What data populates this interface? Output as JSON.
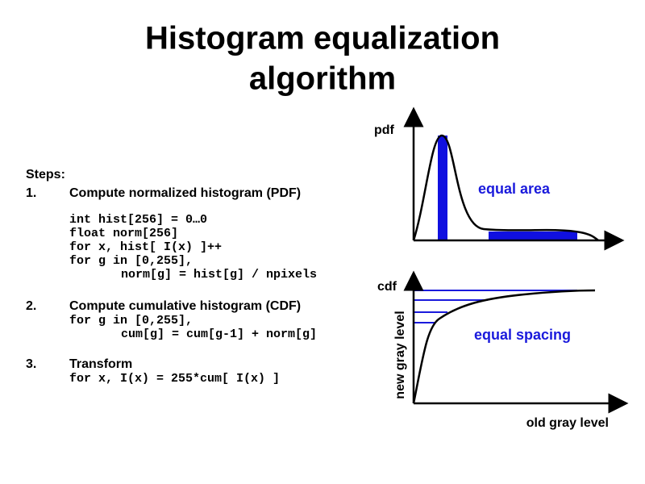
{
  "title": {
    "line1": "Histogram equalization",
    "line2": "algorithm"
  },
  "steps_label": "Steps:",
  "steps": [
    {
      "number": "1.",
      "heading": "Compute normalized histogram (PDF)",
      "code": [
        "int hist[256] = 0…0",
        "float norm[256]",
        "for x, hist[ I(x) ]++",
        "for g in [0,255],",
        "norm[g] = hist[g] / npixels"
      ]
    },
    {
      "number": "2.",
      "heading": "Compute cumulative histogram (CDF)",
      "code": [
        "for g in [0,255],",
        "cum[g] = cum[g-1] + norm[g]"
      ]
    },
    {
      "number": "3.",
      "heading": "Transform",
      "code": [
        "for x, I(x) = 255*cum[ I(x) ]"
      ]
    }
  ],
  "pdf_diagram": {
    "axis_label": "pdf",
    "annotation": "equal area"
  },
  "cdf_diagram": {
    "axis_label": "cdf",
    "annotation": "equal spacing",
    "y_label": "new gray level",
    "x_label": "old gray level"
  }
}
